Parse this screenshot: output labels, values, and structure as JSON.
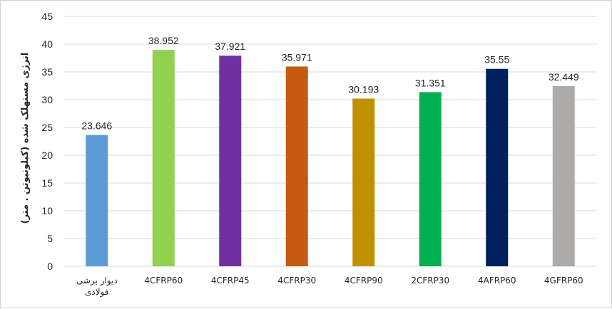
{
  "chart_data": {
    "type": "bar",
    "title": "",
    "xlabel": "",
    "ylabel": "انرژی مستهلک شده (کیلونیوتن . متر)",
    "ylim": [
      0,
      45
    ],
    "ytick_step": 5,
    "grid": true,
    "legend": "none",
    "categories": [
      [
        "دیوار برشی",
        "فولادی"
      ],
      [
        "4CFRP60"
      ],
      [
        "4CFRP45"
      ],
      [
        "4CFRP30"
      ],
      [
        "4CFRP90"
      ],
      [
        "2CFRP30"
      ],
      [
        "4AFRP60"
      ],
      [
        "4GFRP60"
      ]
    ],
    "values": [
      23.646,
      38.952,
      37.921,
      35.971,
      30.193,
      31.351,
      35.55,
      32.449
    ],
    "value_labels": [
      "23.646",
      "38.952",
      "37.921",
      "35.971",
      "30.193",
      "31.351",
      "35.55",
      "32.449"
    ],
    "colors": [
      "#5b9bd5",
      "#92d050",
      "#7030a0",
      "#c55a11",
      "#bf9000",
      "#00b050",
      "#002060",
      "#aeaaaa"
    ]
  }
}
